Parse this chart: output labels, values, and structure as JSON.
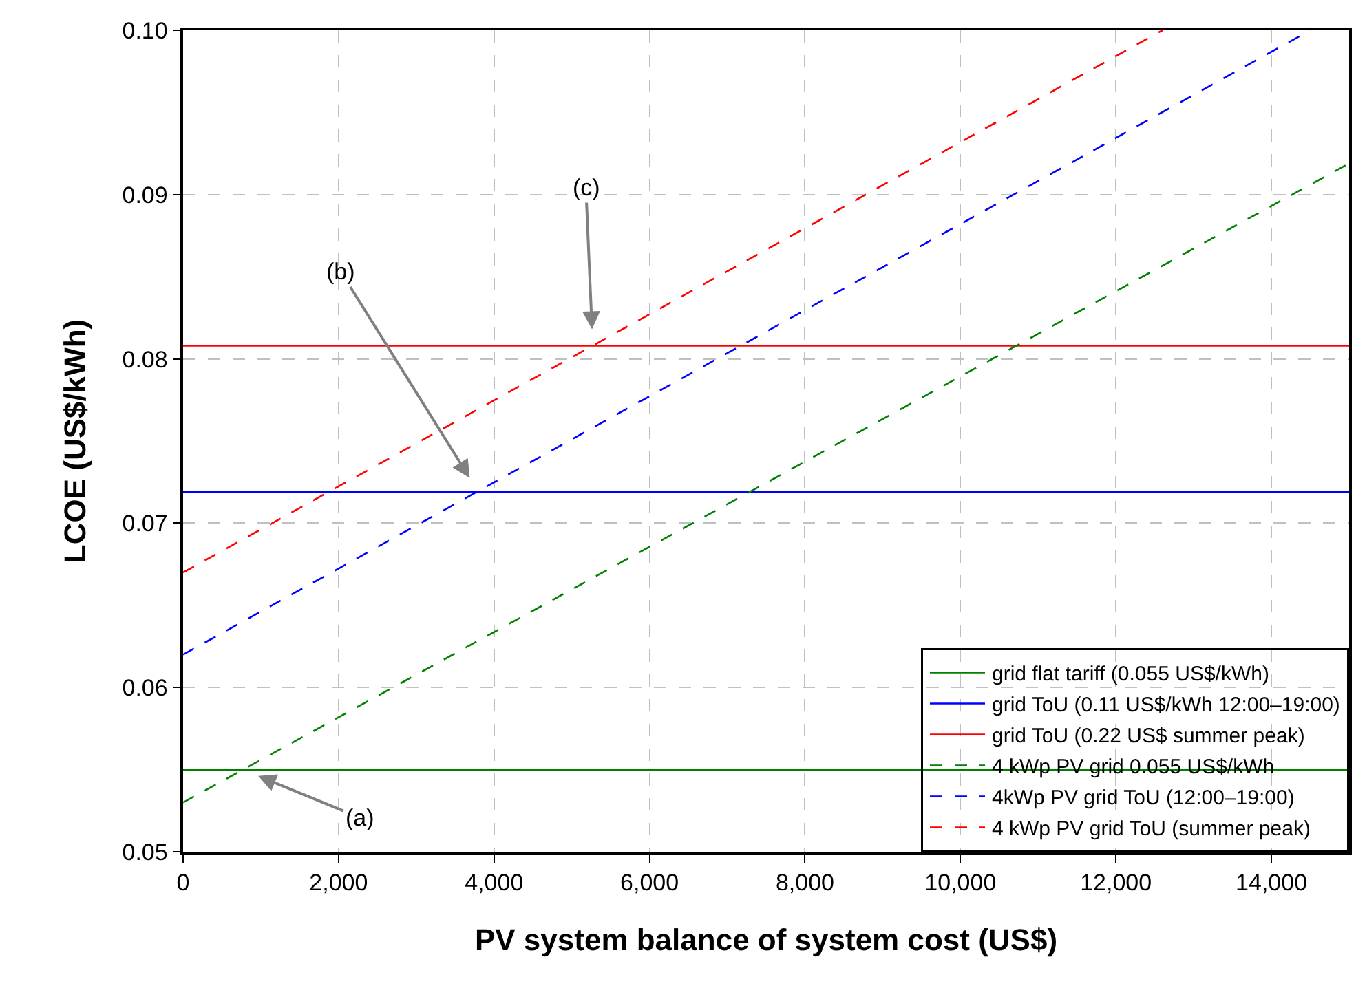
{
  "chart_data": {
    "type": "line",
    "xlabel": "PV system balance of system cost (US$)",
    "ylabel": "LCOE (US$/kWh)",
    "xlim": [
      0,
      15000
    ],
    "ylim": [
      0.05,
      0.1
    ],
    "xticks": [
      0,
      {
        "value": 2000,
        "label": "2,000"
      },
      {
        "value": 4000,
        "label": "4,000"
      },
      {
        "value": 6000,
        "label": "6,000"
      },
      {
        "value": 8000,
        "label": "8,000"
      },
      {
        "value": 10000,
        "label": "10,000"
      },
      {
        "value": 12000,
        "label": "12,000"
      },
      {
        "value": 14000,
        "label": "14,000"
      }
    ],
    "yticks": [
      {
        "value": 0.05,
        "label": "0.05"
      },
      {
        "value": 0.06,
        "label": "0.06"
      },
      {
        "value": 0.07,
        "label": "0.07"
      },
      {
        "value": 0.08,
        "label": "0.08"
      },
      {
        "value": 0.09,
        "label": "0.09"
      },
      {
        "value": 0.1,
        "label": "0.10"
      }
    ],
    "grid": true,
    "legend": "bottom right",
    "marker": "none",
    "series": [
      {
        "name": "grid flat tariff (0.055 US$/kWh)",
        "color": "#008000",
        "line_style": "solid",
        "x": [
          0,
          15000
        ],
        "values": [
          0.055,
          0.055
        ]
      },
      {
        "name": "grid ToU (0.11 US$/kWh 12:00–19:00)",
        "color": "#0000ff",
        "line_style": "solid",
        "x": [
          0,
          15000
        ],
        "values": [
          0.0719,
          0.0719
        ]
      },
      {
        "name": "grid ToU (0.22 US$ summer peak)",
        "color": "#ff0000",
        "line_style": "solid",
        "x": [
          0,
          15000
        ],
        "values": [
          0.0808,
          0.0808
        ]
      },
      {
        "name": "4 kWp PV grid 0.055 US$/kWh",
        "color": "#008000",
        "line_style": "dashed",
        "x": [
          0,
          15000
        ],
        "values": [
          0.053,
          0.0919
        ]
      },
      {
        "name": "4kWp PV grid ToU (12:00–19:00)",
        "color": "#0000ff",
        "line_style": "dashed",
        "x": [
          0,
          14500
        ],
        "values": [
          0.062,
          0.1
        ]
      },
      {
        "name": "4 kWp PV grid ToU (summer peak)",
        "color": "#ff0000",
        "line_style": "dashed",
        "x": [
          0,
          12600
        ],
        "values": [
          0.067,
          0.1
        ]
      }
    ],
    "annotations": [
      {
        "text": "(a)",
        "x": 770,
        "y": 0.055
      },
      {
        "text": "(b)",
        "x": 3800,
        "y": 0.0719
      },
      {
        "text": "(c)",
        "x": 5270,
        "y": 0.0808
      }
    ]
  }
}
